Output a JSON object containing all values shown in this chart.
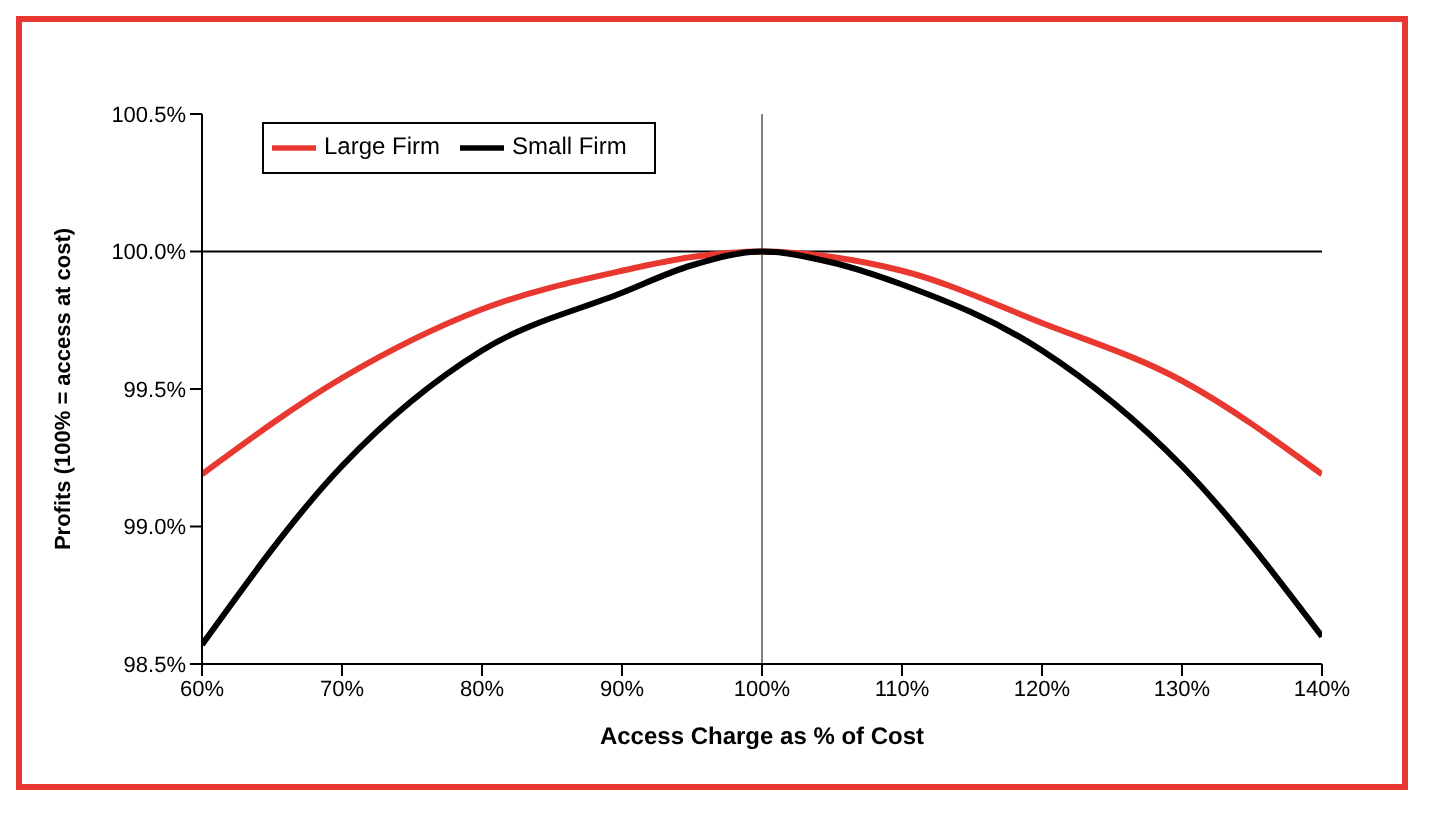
{
  "chart_data": {
    "type": "line",
    "xlabel": "Access Charge as % of Cost",
    "ylabel": "Profits (100% = access at cost)",
    "x": [
      60,
      70,
      80,
      90,
      95,
      100,
      105,
      110,
      120,
      130,
      140
    ],
    "series": [
      {
        "name": "Large Firm",
        "color": "#e8382f",
        "values": [
          99.19,
          99.54,
          99.79,
          99.93,
          99.98,
          100,
          99.98,
          99.93,
          99.74,
          99.53,
          99.19
        ]
      },
      {
        "name": "Small Firm",
        "color": "#000000",
        "values": [
          98.57,
          99.22,
          99.64,
          99.85,
          99.95,
          100,
          99.96,
          99.88,
          99.64,
          99.22,
          98.6
        ]
      }
    ],
    "xlim": [
      60,
      140
    ],
    "xticks": [
      {
        "value": 60,
        "label": "60%"
      },
      {
        "value": 70,
        "label": "70%"
      },
      {
        "value": 80,
        "label": "80%"
      },
      {
        "value": 90,
        "label": "90%"
      },
      {
        "value": 100,
        "label": "100%"
      },
      {
        "value": 110,
        "label": "110%"
      },
      {
        "value": 120,
        "label": "120%"
      },
      {
        "value": 130,
        "label": "130%"
      },
      {
        "value": 140,
        "label": "140%"
      }
    ],
    "ylim": [
      98.5,
      100.5
    ],
    "yticks": [
      {
        "value": 98.5,
        "label": "98.5%"
      },
      {
        "value": 99,
        "label": "99.0%"
      },
      {
        "value": 99.5,
        "label": "99.5%"
      },
      {
        "value": 100,
        "label": "100.0%"
      },
      {
        "value": 100.5,
        "label": "100.5%"
      }
    ],
    "ref_lines": [
      {
        "axis": "x",
        "value": 100,
        "color": "#808080"
      },
      {
        "axis": "y",
        "value": 100,
        "color": "#000000"
      }
    ],
    "grid": false,
    "legend": "top left",
    "marker": "none",
    "line_style": "solid"
  }
}
